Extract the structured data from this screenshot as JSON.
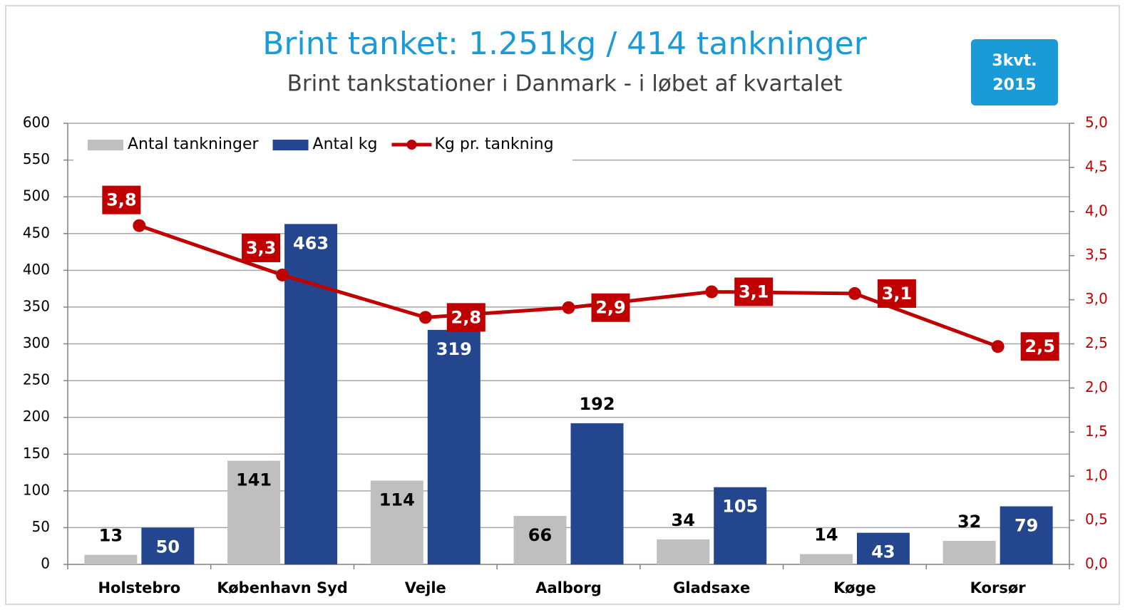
{
  "chart_data": {
    "type": "bar_line",
    "title": "Brint tanket: 1.251kg / 414 tankninger",
    "subtitle": "Brint tankstationer i Danmark - i løbet af kvartalet",
    "badge": [
      "3kvt.",
      "2015"
    ],
    "categories": [
      "Holstebro",
      "København Syd",
      "Vejle",
      "Aalborg",
      "Gladsaxe",
      "Køge",
      "Korsør"
    ],
    "series": [
      {
        "name": "Antal tankninger",
        "type": "bar",
        "color": "#bfbfbf",
        "values": [
          13,
          141,
          114,
          66,
          34,
          14,
          32
        ]
      },
      {
        "name": "Antal kg",
        "type": "bar",
        "color": "#24468f",
        "values": [
          50,
          463,
          319,
          192,
          105,
          43,
          79
        ]
      },
      {
        "name": "Kg pr. tankning",
        "type": "line",
        "axis": "y2",
        "color": "#c00000",
        "values": [
          3.84,
          3.28,
          2.8,
          2.91,
          3.09,
          3.07,
          2.47
        ],
        "value_labels": [
          "3,8",
          "3,3",
          "2,8",
          "2,9",
          "3,1",
          "3,1",
          "2,5"
        ]
      }
    ],
    "ylim": [
      0,
      600
    ],
    "yticks": [
      0,
      50,
      100,
      150,
      200,
      250,
      300,
      350,
      400,
      450,
      500,
      550,
      600
    ],
    "y2lim": [
      0,
      5
    ],
    "y2ticks": [
      {
        "value": 0,
        "label": "0,0"
      },
      {
        "value": 0.5,
        "label": "0,5"
      },
      {
        "value": 1,
        "label": "1,0"
      },
      {
        "value": 1.5,
        "label": "1,5"
      },
      {
        "value": 2,
        "label": "2,0"
      },
      {
        "value": 2.5,
        "label": "2,5"
      },
      {
        "value": 3,
        "label": "3,0"
      },
      {
        "value": 3.5,
        "label": "3,5"
      },
      {
        "value": 4,
        "label": "4,0"
      },
      {
        "value": 4.5,
        "label": "4,5"
      },
      {
        "value": 5,
        "label": "5,0"
      }
    ],
    "grid": true,
    "legend": "top-left"
  }
}
